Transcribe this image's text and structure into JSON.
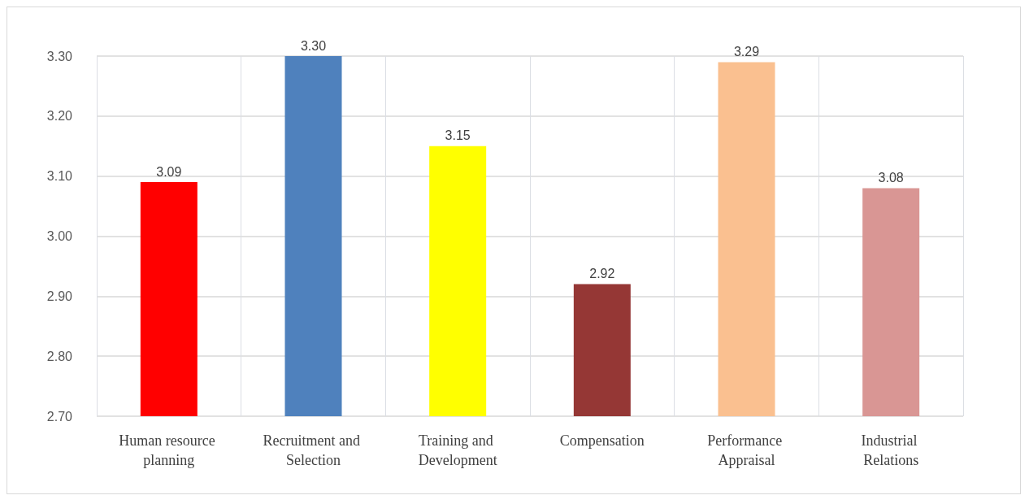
{
  "chart_data": {
    "type": "bar",
    "categories": [
      "Human resource planning",
      "Recruitment and Selection",
      "Training and Development",
      "Compensation",
      "Performance Appraisal",
      "Industrial Relations"
    ],
    "values": [
      3.09,
      3.3,
      3.15,
      2.92,
      3.29,
      3.08
    ],
    "colors": [
      "#ff0000",
      "#4f81bd",
      "#ffff00",
      "#953735",
      "#fac090",
      "#d99694"
    ],
    "value_labels": [
      "3.09",
      "3.30",
      "3.15",
      "2.92",
      "3.29",
      "3.08"
    ],
    "ylim": [
      2.7,
      3.3
    ],
    "yticks": [
      {
        "value": 2.7,
        "label": "2.70"
      },
      {
        "value": 2.8,
        "label": "2.80"
      },
      {
        "value": 2.9,
        "label": "2.90"
      },
      {
        "value": 3.0,
        "label": "3.00"
      },
      {
        "value": 3.1,
        "label": "3.10"
      },
      {
        "value": 3.2,
        "label": "3.20"
      },
      {
        "value": 3.3,
        "label": "3.30"
      }
    ],
    "grid": true
  }
}
